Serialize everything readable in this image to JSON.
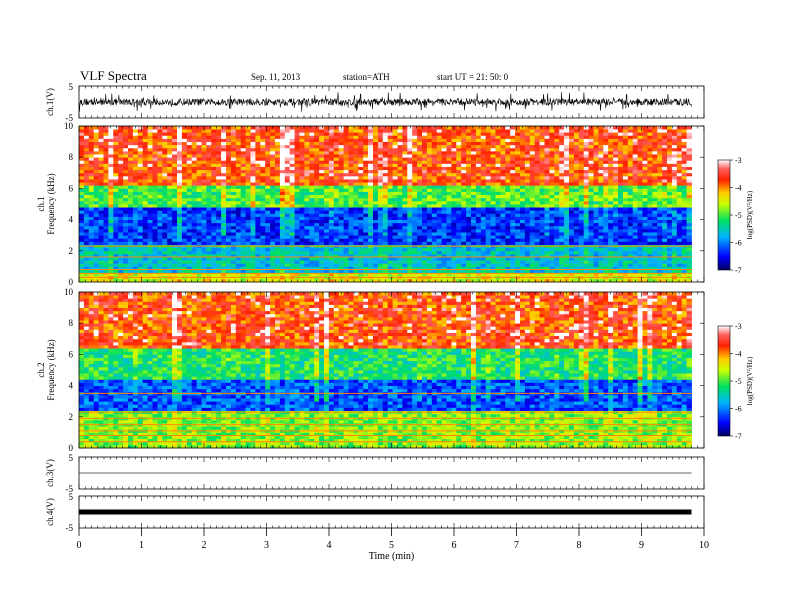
{
  "header": {
    "title": "VLF  Spectra",
    "date": "Sep. 11, 2013",
    "station": "station=ATH",
    "start": "start  UT  =   21: 50: 0"
  },
  "colors": {
    "spectrogram_high": "#ee1111",
    "spectrogram_mid": "#ffee00",
    "spectrogram_low_mid": "#22dd44",
    "spectrogram_low": "#1144dd",
    "trace": "#000000"
  },
  "chart_data": [
    {
      "id": "ch1_waveform",
      "type": "line",
      "ylabel": "ch.1(V)",
      "ylim": [
        -5,
        5
      ],
      "yticks": [
        "5",
        "-5"
      ],
      "xlim": [
        0,
        10
      ],
      "description_values": {
        "x_end_min": 9.8,
        "amplitude_approx_V": [
          -3,
          3
        ]
      }
    },
    {
      "id": "ch1_spectrogram",
      "type": "heatmap",
      "ylabel_channel": "ch.1",
      "ylabel": "Frequency  (kHz)",
      "ylim": [
        0,
        10
      ],
      "yticks": [
        "0",
        "2",
        "4",
        "6",
        "8",
        "10"
      ],
      "xlim": [
        0,
        10
      ],
      "x_end_min": 9.8,
      "bands_kHz": [
        {
          "from": 0,
          "to": 0.7,
          "level": -4.5
        },
        {
          "from": 0.7,
          "to": 2.5,
          "level": -5.6
        },
        {
          "from": 2.5,
          "to": 4.8,
          "level": -6.3
        },
        {
          "from": 4.8,
          "to": 6.3,
          "level": -5.0
        },
        {
          "from": 6.3,
          "to": 10,
          "level": -3.8
        }
      ],
      "colorbar": {
        "label": "log(PSD)(V²/Hz)",
        "range": [
          -7,
          -3
        ],
        "ticks": [
          "-3",
          "-4",
          "-5",
          "-6",
          "-7"
        ]
      }
    },
    {
      "id": "ch2_spectrogram",
      "type": "heatmap",
      "ylabel_channel": "ch.2",
      "ylabel": "Frequency  (kHz)",
      "ylim": [
        0,
        10
      ],
      "yticks": [
        "0",
        "2",
        "4",
        "6",
        "8",
        "10"
      ],
      "xlim": [
        0,
        10
      ],
      "x_end_min": 9.8,
      "bands_kHz": [
        {
          "from": 0,
          "to": 2.5,
          "level": -4.8
        },
        {
          "from": 2.5,
          "to": 4.5,
          "level": -6.2
        },
        {
          "from": 4.5,
          "to": 6.5,
          "level": -5.2
        },
        {
          "from": 6.5,
          "to": 10,
          "level": -3.8
        }
      ],
      "colorbar": {
        "label": "log(PSD)(V²/Hz)",
        "range": [
          -7,
          -3
        ],
        "ticks": [
          "-3",
          "-4",
          "-5",
          "-6",
          "-7"
        ]
      }
    },
    {
      "id": "ch3_waveform",
      "type": "line",
      "ylabel": "ch.3(V)",
      "ylim": [
        -5,
        5
      ],
      "yticks": [
        "5",
        "-5"
      ],
      "xlim": [
        0,
        10
      ],
      "level_V": 0
    },
    {
      "id": "ch4_waveform",
      "type": "line",
      "ylabel": "ch.4(V)",
      "ylim": [
        -5,
        5
      ],
      "yticks": [
        "5",
        "-5"
      ],
      "xlim": [
        0,
        10
      ],
      "level_V": 0
    }
  ],
  "xaxis": {
    "label": "Time  (min)",
    "ticks": [
      "0",
      "1",
      "2",
      "3",
      "4",
      "5",
      "6",
      "7",
      "8",
      "9",
      "10"
    ]
  }
}
